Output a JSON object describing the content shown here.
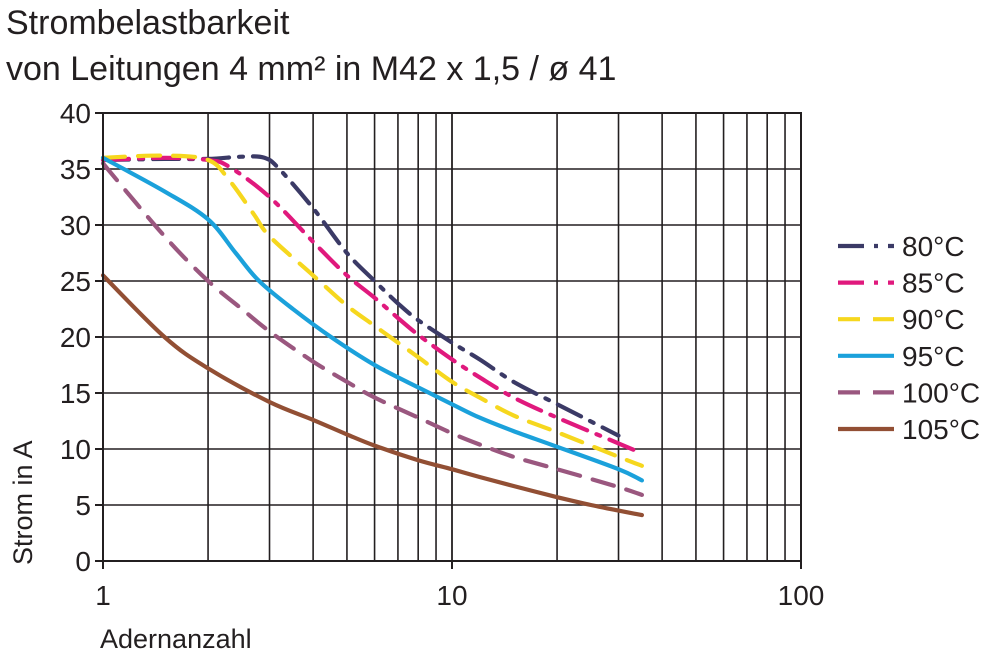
{
  "title": {
    "line1": "Strombelastbarkeit",
    "line2": "von Leitungen 4 mm² in M42 x 1,5 / ø 41"
  },
  "chart_data": {
    "type": "line",
    "title": "Strombelastbarkeit von Leitungen 4 mm² in M42 x 1,5 / ø 41",
    "xlabel": "Adernanzahl",
    "ylabel": "Strom in A",
    "xscale": "log",
    "xlim": [
      1,
      100
    ],
    "ylim": [
      0,
      40
    ],
    "x_ticks": [
      1,
      10,
      100
    ],
    "x_tick_labels": [
      "1",
      "10",
      "100"
    ],
    "y_ticks": [
      0,
      5,
      10,
      15,
      20,
      25,
      30,
      35,
      40
    ],
    "y_tick_labels": [
      "0",
      "5",
      "10",
      "15",
      "20",
      "25",
      "30",
      "35",
      "40"
    ],
    "grid": true,
    "legend": "right",
    "series": [
      {
        "name": "80°C",
        "color": "#3b3a66",
        "dash": "dash-dot",
        "x": [
          1,
          1.5,
          2,
          2.5,
          2.9,
          3.2,
          4,
          5,
          6,
          7,
          8,
          10,
          12,
          15,
          20,
          30
        ],
        "y": [
          35.8,
          35.9,
          35.9,
          36.1,
          36.0,
          35.0,
          31.5,
          27.5,
          25.0,
          23.0,
          21.5,
          19.5,
          18.0,
          16.0,
          14.0,
          11.2
        ]
      },
      {
        "name": "85°C",
        "color": "#e0197d",
        "dash": "dash-dot",
        "x": [
          1,
          1.5,
          2,
          2.3,
          3,
          4,
          5,
          6,
          7,
          8,
          10,
          12,
          15,
          20,
          30,
          35
        ],
        "y": [
          35.8,
          36.0,
          35.8,
          35.2,
          32.5,
          28.5,
          25.5,
          23.5,
          21.7,
          20.2,
          18.0,
          16.4,
          14.6,
          12.8,
          10.5,
          9.6
        ]
      },
      {
        "name": "90°C",
        "color": "#f6d71e",
        "dash": "dash",
        "x": [
          1,
          1.5,
          2,
          2.3,
          2.7,
          3,
          4,
          5,
          6,
          7,
          8,
          10,
          12,
          15,
          20,
          30,
          35
        ],
        "y": [
          36.0,
          36.2,
          35.8,
          34.0,
          31.0,
          29.0,
          25.5,
          22.8,
          21.0,
          19.5,
          18.2,
          16.0,
          14.6,
          13.0,
          11.5,
          9.3,
          8.5
        ]
      },
      {
        "name": "95°C",
        "color": "#1ba1db",
        "dash": "solid",
        "x": [
          1,
          1.5,
          2,
          2.4,
          2.8,
          3.5,
          4.5,
          6,
          8,
          10,
          12,
          15,
          20,
          30,
          35
        ],
        "y": [
          36.0,
          33.0,
          30.5,
          27.5,
          25.0,
          22.5,
          20.0,
          17.5,
          15.5,
          14.0,
          12.8,
          11.6,
          10.2,
          8.2,
          7.2
        ]
      },
      {
        "name": "100°C",
        "color": "#9a577f",
        "dash": "dash",
        "x": [
          1,
          1.5,
          2,
          2.5,
          3,
          4,
          5,
          6,
          8,
          10,
          12,
          15,
          20,
          30,
          35
        ],
        "y": [
          35.5,
          29.0,
          25.0,
          22.5,
          20.5,
          17.8,
          16.0,
          14.6,
          12.8,
          11.4,
          10.4,
          9.3,
          8.2,
          6.6,
          5.9
        ]
      },
      {
        "name": "105°C",
        "color": "#924f34",
        "dash": "solid",
        "x": [
          1,
          1.5,
          2,
          3,
          4,
          5,
          6,
          8,
          10,
          12,
          15,
          20,
          25,
          30,
          35
        ],
        "y": [
          25.5,
          20.0,
          17.2,
          14.2,
          12.6,
          11.3,
          10.3,
          9.0,
          8.2,
          7.5,
          6.7,
          5.7,
          5.0,
          4.5,
          4.1
        ]
      }
    ]
  }
}
